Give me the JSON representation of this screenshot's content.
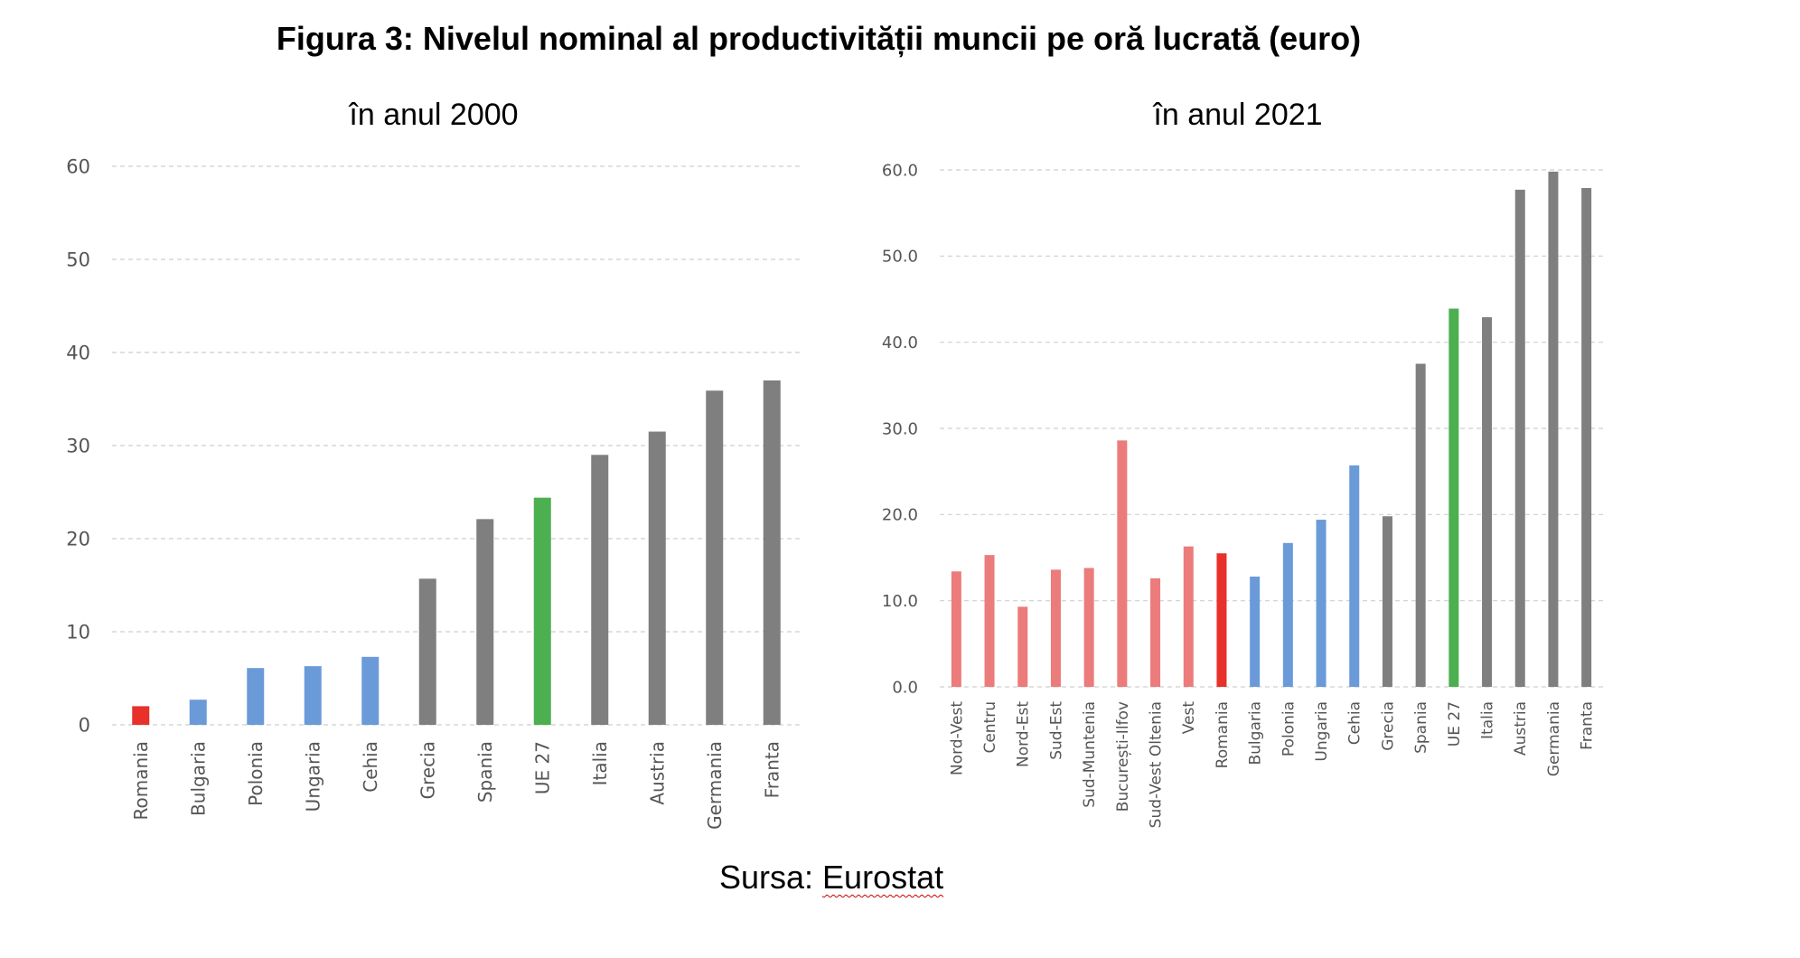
{
  "title": "Figura 3: Nivelul nominal al productivității muncii pe oră lucrată (euro)",
  "source": {
    "prefix": "Sursa: ",
    "name": "Eurostat"
  },
  "colors": {
    "red": "#e8312a",
    "pink": "#ec7b7b",
    "blue": "#6a9bd8",
    "green": "#4caf50",
    "grey": "#7f7f7f",
    "grid": "#cfcfcf"
  },
  "chart_data": [
    {
      "type": "bar",
      "title": "în anul 2000",
      "categories": [
        "Romania",
        "Bulgaria",
        "Polonia",
        "Ungaria",
        "Cehia",
        "Grecia",
        "Spania",
        "UE 27",
        "Italia",
        "Austria",
        "Germania",
        "Franta"
      ],
      "values": [
        2,
        2.7,
        6.1,
        6.3,
        7.3,
        15.7,
        22.1,
        24.4,
        29,
        31.5,
        35.9,
        37
      ],
      "bar_colors": [
        "red",
        "blue",
        "blue",
        "blue",
        "blue",
        "grey",
        "grey",
        "green",
        "grey",
        "grey",
        "grey",
        "grey"
      ],
      "ylim": [
        0,
        60
      ],
      "yticks": [
        "0",
        "10",
        "20",
        "30",
        "40",
        "50",
        "60"
      ],
      "grid": true
    },
    {
      "type": "bar",
      "title": "în anul 2021",
      "categories": [
        "Nord-Vest",
        "Centru",
        "Nord-Est",
        "Sud-Est",
        "Sud-Muntenia",
        "București-Ilfov",
        "Sud-Vest Oltenia",
        "Vest",
        "Romania",
        "Bulgaria",
        "Polonia",
        "Ungaria",
        "Cehia",
        "Grecia",
        "Spania",
        "UE 27",
        "Italia",
        "Austria",
        "Germania",
        "Franta"
      ],
      "values": [
        13.4,
        15.3,
        9.3,
        13.6,
        13.8,
        28.6,
        12.6,
        16.3,
        15.5,
        12.8,
        16.7,
        19.4,
        25.7,
        19.8,
        37.5,
        43.9,
        42.9,
        57.7,
        59.8,
        57.9
      ],
      "bar_colors": [
        "pink",
        "pink",
        "pink",
        "pink",
        "pink",
        "pink",
        "pink",
        "pink",
        "red",
        "blue",
        "blue",
        "blue",
        "blue",
        "grey",
        "grey",
        "green",
        "grey",
        "grey",
        "grey",
        "grey"
      ],
      "ylim": [
        0,
        60
      ],
      "yticks": [
        "0.0",
        "10.0",
        "20.0",
        "30.0",
        "40.0",
        "50.0",
        "60.0"
      ],
      "grid": true
    }
  ]
}
